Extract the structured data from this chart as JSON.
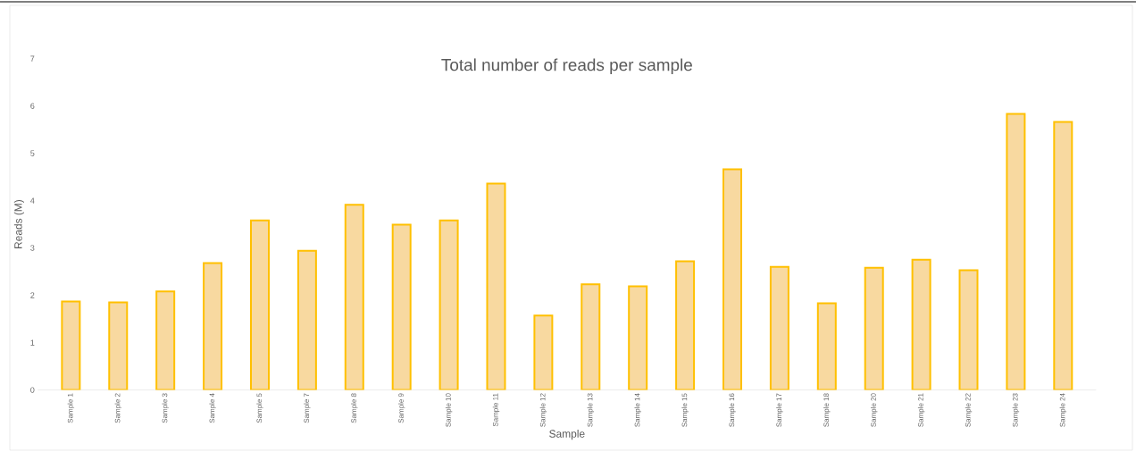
{
  "chart_data": {
    "type": "bar",
    "title": "Total number of reads per sample",
    "xlabel": "Sample",
    "ylabel": "Reads (M)",
    "categories": [
      "Sample 1",
      "Sample 2",
      "Sample 3",
      "Sample 4",
      "Sample 5",
      "Sample 7",
      "Sample 8",
      "Sample 9",
      "Sample 10",
      "Sample 11",
      "Sample 12",
      "Sample 13",
      "Sample 14",
      "Sample 15",
      "Sample 16",
      "Sample 17",
      "Sample 18",
      "Sample 20",
      "Sample 21",
      "Sample 22",
      "Sample 23",
      "Sample 24"
    ],
    "values": [
      1.87,
      1.85,
      2.08,
      2.68,
      3.58,
      2.94,
      3.91,
      3.49,
      3.58,
      4.36,
      1.57,
      2.23,
      2.19,
      2.72,
      4.66,
      2.6,
      1.83,
      2.58,
      2.75,
      2.53,
      5.83,
      5.66
    ],
    "color": "#f8d9a0",
    "ylim": [
      0,
      7
    ],
    "yticks": [
      0,
      1,
      2,
      3,
      4,
      5,
      6,
      7
    ]
  }
}
